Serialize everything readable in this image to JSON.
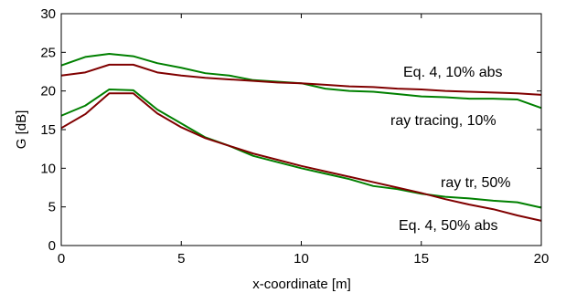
{
  "chart_data": {
    "type": "line",
    "title": "",
    "xlabel": "x-coordinate  [m]",
    "ylabel": "G  [dB]",
    "xlim": [
      0,
      20
    ],
    "ylim": [
      0,
      30
    ],
    "xticks": [
      0,
      5,
      10,
      15,
      20
    ],
    "yticks": [
      0,
      5,
      10,
      15,
      20,
      25,
      30
    ],
    "grid": false,
    "legend": "none",
    "x": [
      0,
      1,
      2,
      3,
      4,
      5,
      6,
      7,
      8,
      9,
      10,
      11,
      12,
      13,
      14,
      15,
      16,
      17,
      18,
      19,
      20
    ],
    "series": [
      {
        "color": "#008000",
        "values": [
          23.3,
          24.4,
          24.8,
          24.5,
          23.6,
          23.0,
          22.3,
          22.0,
          21.4,
          21.2,
          21.0,
          20.3,
          20.0,
          19.9,
          19.6,
          19.3,
          19.2,
          19.0,
          19.0,
          18.9,
          17.8
        ]
      },
      {
        "color": "#800000",
        "values": [
          22.0,
          22.4,
          23.4,
          23.4,
          22.4,
          22.0,
          21.7,
          21.5,
          21.3,
          21.1,
          21.0,
          20.8,
          20.6,
          20.5,
          20.3,
          20.2,
          20.0,
          19.9,
          19.8,
          19.7,
          19.5
        ]
      },
      {
        "color": "#008000",
        "values": [
          16.8,
          18.1,
          20.2,
          20.1,
          17.6,
          15.8,
          14.0,
          12.9,
          11.6,
          10.8,
          10.0,
          9.3,
          8.6,
          7.7,
          7.3,
          6.7,
          6.3,
          6.1,
          5.8,
          5.6,
          4.9
        ]
      },
      {
        "color": "#800000",
        "values": [
          15.2,
          17.0,
          19.7,
          19.7,
          17.1,
          15.3,
          13.9,
          12.9,
          11.9,
          11.1,
          10.3,
          9.6,
          8.9,
          8.2,
          7.5,
          6.8,
          6.0,
          5.3,
          4.7,
          3.9,
          3.2
        ]
      }
    ],
    "annotations": [
      {
        "text": "Eq. 4, 10% abs"
      },
      {
        "text": "ray tracing, 10%"
      },
      {
        "text": "ray tr, 50%"
      },
      {
        "text": "Eq. 4, 50% abs"
      }
    ]
  }
}
